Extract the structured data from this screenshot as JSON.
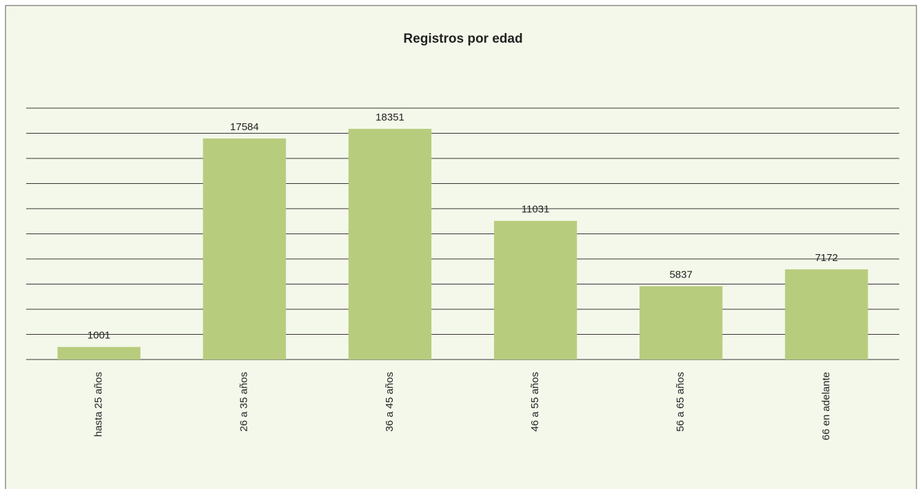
{
  "chart_data": {
    "type": "bar",
    "title": "Registros por edad",
    "categories": [
      "hasta 25 años",
      "26 a 35 años",
      "36 a 45 años",
      "46 a 55 años",
      "56 a 65 años",
      "66 en adelante"
    ],
    "values": [
      1001,
      17584,
      18351,
      11031,
      5837,
      7172
    ],
    "color": "#b8cc7e",
    "ylim": [
      0,
      20000
    ],
    "yticks": [
      0,
      2000,
      4000,
      6000,
      8000,
      10000,
      12000,
      14000,
      16000,
      18000,
      20000
    ],
    "grid": true
  }
}
